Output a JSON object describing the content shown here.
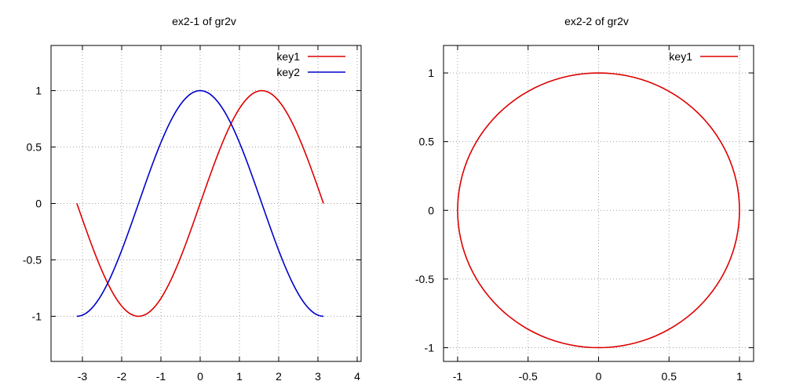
{
  "chart_data": [
    {
      "type": "line",
      "title": "ex2-1 of gr2v",
      "xlabel": "",
      "ylabel": "",
      "xlim": [
        -3.8,
        4.1
      ],
      "ylim": [
        -1.4,
        1.4
      ],
      "xticks": [
        -3,
        -2,
        -1,
        0,
        1,
        2,
        3,
        4
      ],
      "yticks": [
        -1,
        -0.5,
        0,
        0.5,
        1
      ],
      "grid": true,
      "legend": "top-right",
      "series": [
        {
          "name": "key1",
          "color": "#dd0000",
          "function": "sin",
          "domain": [
            -3.14159,
            3.14159
          ],
          "points": 101
        },
        {
          "name": "key2",
          "color": "#0000cc",
          "function": "cos",
          "domain": [
            -3.14159,
            3.14159
          ],
          "points": 101
        }
      ]
    },
    {
      "type": "line",
      "title": "ex2-2 of gr2v",
      "xlabel": "",
      "ylabel": "",
      "xlim": [
        -1.1,
        1.1
      ],
      "ylim": [
        -1.1,
        1.2
      ],
      "xticks": [
        -1,
        -0.5,
        0,
        0.5,
        1
      ],
      "yticks": [
        -1,
        -0.5,
        0,
        0.5,
        1
      ],
      "grid": true,
      "legend": "top-right",
      "series": [
        {
          "name": "key1",
          "color": "#dd0000",
          "function": "unit-circle",
          "domain": [
            0,
            6.28318
          ],
          "points": 121
        }
      ]
    }
  ]
}
